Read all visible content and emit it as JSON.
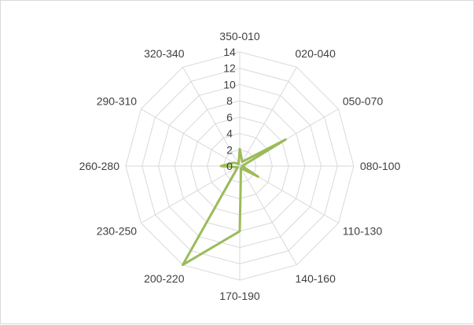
{
  "chart_data": {
    "type": "radar",
    "title": "",
    "categories": [
      "350-010",
      "020-040",
      "050-070",
      "080-100",
      "110-130",
      "140-160",
      "170-190",
      "200-220",
      "230-250",
      "260-280",
      "290-310",
      "320-340"
    ],
    "r_ticks": [
      "0",
      "2",
      "4",
      "6",
      "8",
      "10",
      "12",
      "14"
    ],
    "r_range": [
      0,
      14
    ],
    "grid": true,
    "legend": "none",
    "series": [
      {
        "values": [
          2.1,
          0.6,
          6.5,
          0.3,
          2.6,
          0.3,
          8.0,
          14.0,
          0.3,
          2.3,
          0.8,
          0.3
        ]
      }
    ]
  },
  "colors": {
    "series": "#9bbb59",
    "grid": "#d9d9d9",
    "text": "#404040",
    "border": "#d9d9d9"
  }
}
